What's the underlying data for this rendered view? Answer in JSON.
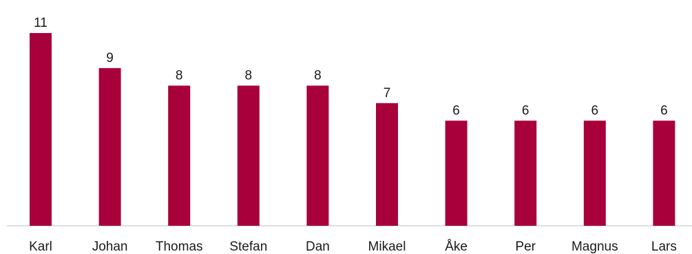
{
  "chart_data": {
    "type": "bar",
    "categories": [
      "Karl",
      "Johan",
      "Thomas",
      "Stefan",
      "Dan",
      "Mikael",
      "Åke",
      "Per",
      "Magnus",
      "Lars"
    ],
    "values": [
      11,
      9,
      8,
      8,
      8,
      7,
      6,
      6,
      6,
      6
    ],
    "data_labels": [
      "11",
      "9",
      "8",
      "8",
      "8",
      "7",
      "6",
      "6",
      "6",
      "6"
    ],
    "title": "",
    "xlabel": "",
    "ylabel": "",
    "ylim": [
      0,
      11
    ],
    "grid": false,
    "legend": "none",
    "bar_color": "#a8003b",
    "axis_color": "#bfbfbf"
  }
}
